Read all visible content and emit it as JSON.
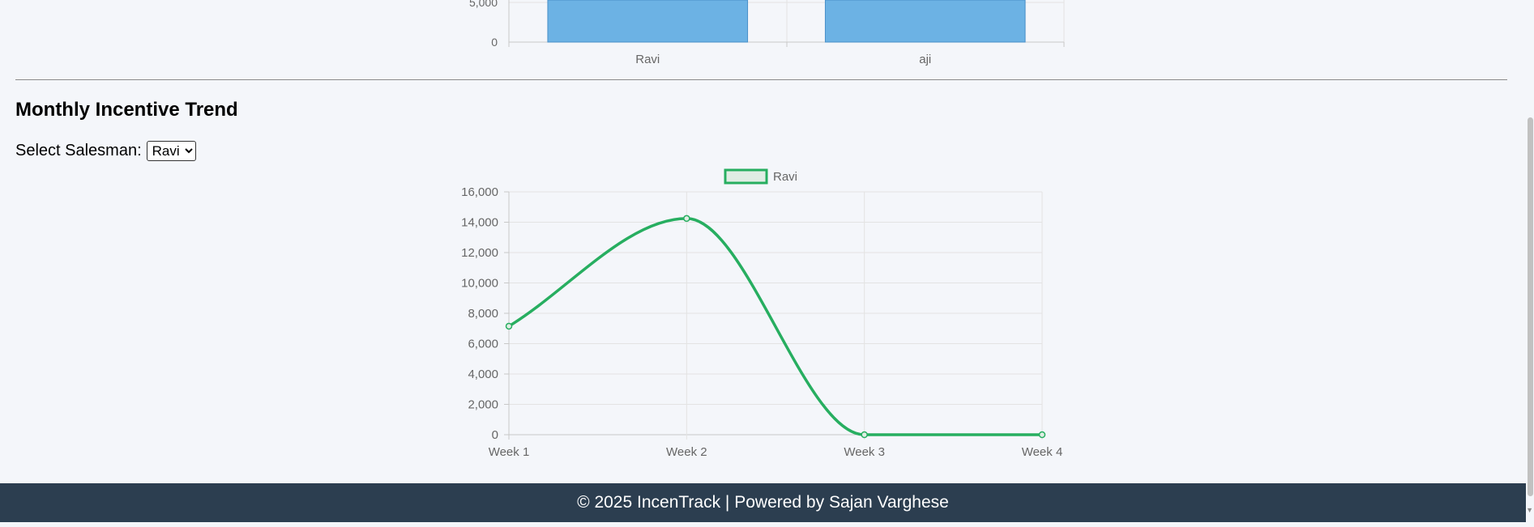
{
  "top_chart": {
    "chart_data": {
      "type": "bar",
      "categories": [
        "Ravi",
        "aji"
      ],
      "y_ticks_visible": [
        "5,000",
        "0"
      ],
      "colors": {
        "bar_fill": "#6cb2e4",
        "bar_stroke": "#4a90c8"
      }
    }
  },
  "trend": {
    "title": "Monthly Incentive Trend",
    "select_label": "Select Salesman:",
    "selected_salesman": "Ravi",
    "options": [
      "Ravi"
    ],
    "chart_data": {
      "type": "line",
      "categories": [
        "Week 1",
        "Week 2",
        "Week 3",
        "Week 4"
      ],
      "series": [
        {
          "name": "Ravi",
          "values": [
            7150,
            14250,
            0,
            0
          ],
          "color": "#27ae60"
        }
      ],
      "ylim": [
        0,
        16000
      ],
      "y_ticks": [
        0,
        2000,
        4000,
        6000,
        8000,
        10000,
        12000,
        14000,
        16000
      ],
      "grid": true,
      "legend": "top-center"
    }
  },
  "footer": {
    "text": "© 2025 IncenTrack | Powered by Sajan Varghese"
  }
}
